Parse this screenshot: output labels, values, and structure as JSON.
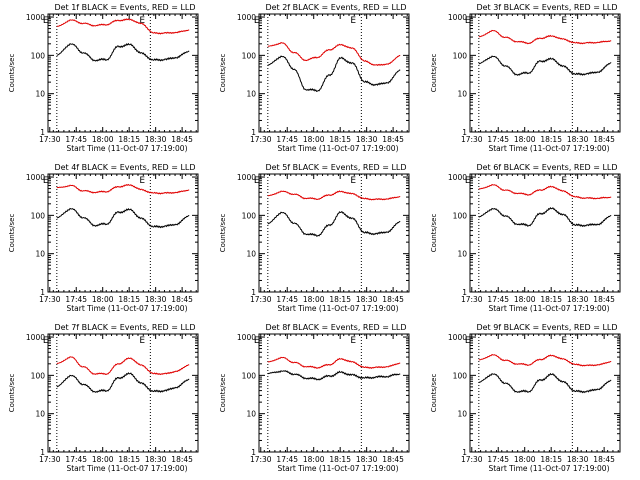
{
  "figure": {
    "background": "#ffffff",
    "axis_color": "#000000",
    "events_color": "#000000",
    "lld_color": "#e00000",
    "ylabel": "Counts/sec",
    "xlabel": "Start Time (11-Oct-07 17:19:00)",
    "xtick_labels": [
      "17:30",
      "17:45",
      "18:00",
      "18:15",
      "18:30",
      "18:45"
    ],
    "ytick_labels": [
      "1",
      "10",
      "100",
      "1000"
    ],
    "markers": [
      "E",
      "E"
    ]
  },
  "chart_data": [
    {
      "type": "line",
      "panel": 1,
      "title": "Det 1f BLACK = Events, RED = LLD",
      "xlim_minutes": [
        -6,
        50
      ],
      "ylim": [
        1,
        1200
      ],
      "yscale": "log",
      "dotted_lines_minutes": [
        -2,
        29.5
      ],
      "x_minutes": [
        -6,
        0,
        5,
        10,
        15,
        20,
        25,
        30,
        35,
        40,
        45,
        50
      ],
      "series": [
        {
          "name": "BLACK = Events",
          "values": [
            100,
            200,
            120,
            75,
            78,
            170,
            190,
            110,
            75,
            78,
            90,
            130
          ]
        },
        {
          "name": "RED = LLD",
          "values": [
            560,
            830,
            690,
            600,
            640,
            820,
            860,
            660,
            380,
            380,
            400,
            460
          ]
        }
      ]
    },
    {
      "type": "line",
      "panel": 2,
      "title": "Det 2f BLACK = Events, RED = LLD",
      "xlim_minutes": [
        -6,
        50
      ],
      "ylim": [
        1,
        1200
      ],
      "yscale": "log",
      "dotted_lines_minutes": [
        -2,
        29.5
      ],
      "x_minutes": [
        -6,
        0,
        5,
        10,
        15,
        20,
        25,
        30,
        35,
        40,
        45,
        50
      ],
      "series": [
        {
          "name": "BLACK = Events",
          "values": [
            55,
            95,
            45,
            13,
            12,
            30,
            85,
            60,
            20,
            17,
            20,
            42
          ]
        },
        {
          "name": "RED = LLD",
          "values": [
            170,
            210,
            120,
            75,
            90,
            140,
            190,
            150,
            70,
            55,
            60,
            100
          ]
        }
      ]
    },
    {
      "type": "line",
      "panel": 3,
      "title": "Det 3f BLACK = Events, RED = LLD",
      "xlim_minutes": [
        -6,
        50
      ],
      "ylim": [
        1,
        1200
      ],
      "yscale": "log",
      "dotted_lines_minutes": [
        -2,
        29.5
      ],
      "x_minutes": [
        -6,
        0,
        5,
        10,
        15,
        20,
        25,
        30,
        35,
        40,
        45,
        50
      ],
      "series": [
        {
          "name": "BLACK = Events",
          "values": [
            60,
            95,
            55,
            32,
            35,
            70,
            80,
            50,
            32,
            33,
            38,
            65
          ]
        },
        {
          "name": "RED = LLD",
          "values": [
            300,
            440,
            300,
            230,
            210,
            280,
            320,
            260,
            210,
            210,
            220,
            240
          ]
        }
      ]
    },
    {
      "type": "line",
      "panel": 4,
      "title": "Det 4f BLACK = Events, RED = LLD",
      "xlim_minutes": [
        -6,
        50
      ],
      "ylim": [
        1,
        1200
      ],
      "yscale": "log",
      "dotted_lines_minutes": [
        -2,
        29.5
      ],
      "x_minutes": [
        -6,
        0,
        5,
        10,
        15,
        20,
        25,
        30,
        35,
        40,
        45,
        50
      ],
      "series": [
        {
          "name": "BLACK = Events",
          "values": [
            85,
            150,
            90,
            55,
            60,
            120,
            140,
            80,
            50,
            52,
            60,
            100
          ]
        },
        {
          "name": "RED = LLD",
          "values": [
            520,
            600,
            440,
            400,
            420,
            560,
            620,
            460,
            380,
            380,
            400,
            460
          ]
        }
      ]
    },
    {
      "type": "line",
      "panel": 5,
      "title": "Det 5f BLACK = Events, RED = LLD",
      "xlim_minutes": [
        -6,
        50
      ],
      "ylim": [
        1,
        1200
      ],
      "yscale": "log",
      "dotted_lines_minutes": [
        -2,
        29.5
      ],
      "x_minutes": [
        -6,
        0,
        5,
        10,
        15,
        20,
        25,
        30,
        35,
        40,
        45,
        50
      ],
      "series": [
        {
          "name": "BLACK = Events",
          "values": [
            60,
            120,
            65,
            33,
            30,
            55,
            120,
            80,
            35,
            33,
            38,
            70
          ]
        },
        {
          "name": "RED = LLD",
          "values": [
            320,
            420,
            360,
            280,
            270,
            340,
            420,
            360,
            270,
            260,
            270,
            310
          ]
        }
      ]
    },
    {
      "type": "line",
      "panel": 6,
      "title": "Det 6f BLACK = Events, RED = LLD",
      "xlim_minutes": [
        -6,
        50
      ],
      "ylim": [
        1,
        1200
      ],
      "yscale": "log",
      "dotted_lines_minutes": [
        -2,
        29.5
      ],
      "x_minutes": [
        -6,
        0,
        5,
        10,
        15,
        20,
        25,
        30,
        35,
        40,
        45,
        50
      ],
      "series": [
        {
          "name": "BLACK = Events",
          "values": [
            90,
            150,
            100,
            60,
            55,
            110,
            150,
            100,
            55,
            55,
            60,
            100
          ]
        },
        {
          "name": "RED = LLD",
          "values": [
            480,
            620,
            460,
            380,
            350,
            460,
            560,
            420,
            300,
            280,
            280,
            300
          ]
        }
      ]
    },
    {
      "type": "line",
      "panel": 7,
      "title": "Det 7f BLACK = Events, RED = LLD",
      "xlim_minutes": [
        -6,
        50
      ],
      "ylim": [
        1,
        1200
      ],
      "yscale": "log",
      "dotted_lines_minutes": [
        -2,
        29.5
      ],
      "x_minutes": [
        -6,
        0,
        5,
        10,
        15,
        20,
        25,
        30,
        35,
        40,
        45,
        50
      ],
      "series": [
        {
          "name": "BLACK = Events",
          "values": [
            50,
            100,
            60,
            38,
            40,
            85,
            110,
            60,
            38,
            40,
            50,
            80
          ]
        },
        {
          "name": "RED = LLD",
          "values": [
            200,
            300,
            170,
            110,
            110,
            200,
            280,
            180,
            110,
            110,
            130,
            190
          ]
        }
      ]
    },
    {
      "type": "line",
      "panel": 8,
      "title": "Det 8f BLACK = Events, RED = LLD",
      "xlim_minutes": [
        -6,
        50
      ],
      "ylim": [
        1,
        1200
      ],
      "yscale": "log",
      "dotted_lines_minutes": [
        -2,
        29.5
      ],
      "x_minutes": [
        -6,
        0,
        5,
        10,
        15,
        20,
        25,
        30,
        35,
        40,
        45,
        50
      ],
      "series": [
        {
          "name": "BLACK = Events",
          "values": [
            110,
            130,
            110,
            85,
            80,
            95,
            120,
            100,
            85,
            90,
            95,
            110
          ]
        },
        {
          "name": "RED = LLD",
          "values": [
            220,
            290,
            220,
            170,
            160,
            190,
            270,
            220,
            160,
            160,
            170,
            210
          ]
        }
      ]
    },
    {
      "type": "line",
      "panel": 9,
      "title": "Det 9f BLACK = Events, RED = LLD",
      "xlim_minutes": [
        -6,
        50
      ],
      "ylim": [
        1,
        1200
      ],
      "yscale": "log",
      "dotted_lines_minutes": [
        -2,
        29.5
      ],
      "x_minutes": [
        -6,
        0,
        5,
        10,
        15,
        20,
        25,
        30,
        35,
        40,
        45,
        50
      ],
      "series": [
        {
          "name": "BLACK = Events",
          "values": [
            65,
            110,
            65,
            38,
            38,
            75,
            105,
            65,
            38,
            38,
            45,
            75
          ]
        },
        {
          "name": "RED = LLD",
          "values": [
            250,
            340,
            250,
            200,
            190,
            260,
            330,
            260,
            190,
            180,
            190,
            230
          ]
        }
      ]
    }
  ]
}
